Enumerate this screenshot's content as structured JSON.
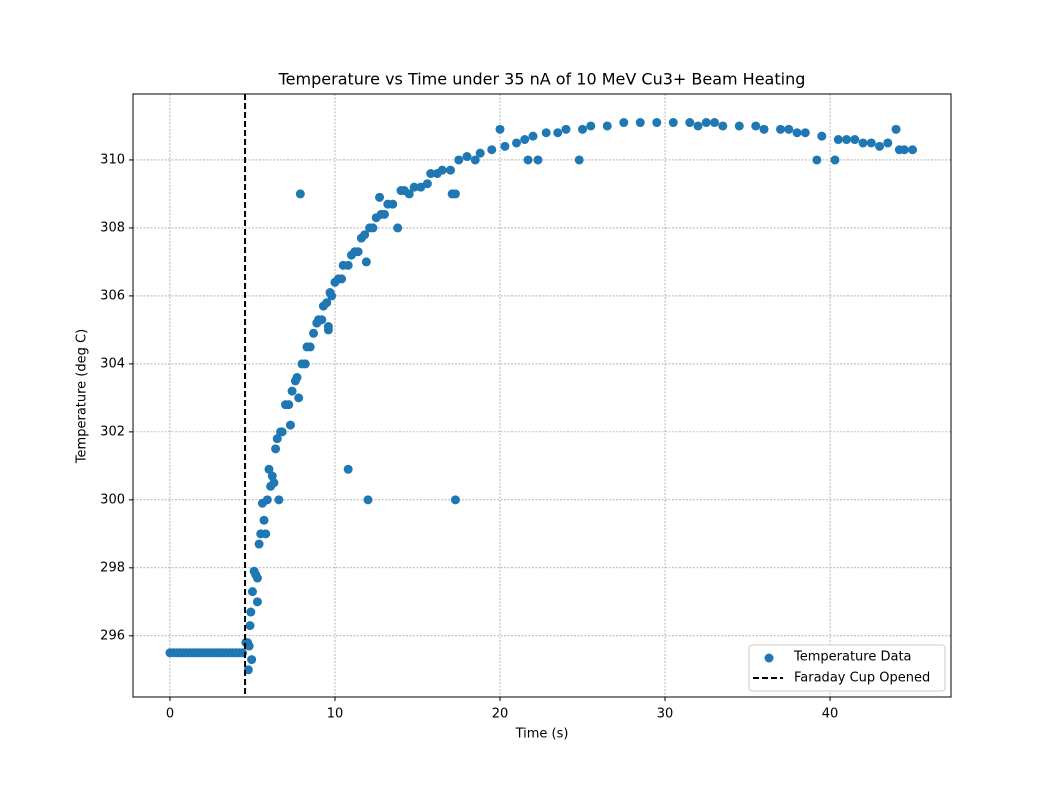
{
  "chart_data": {
    "type": "scatter",
    "title": "Temperature vs Time under 35 nA of 10 MeV Cu3+ Beam Heating",
    "x_label": "Time (s)",
    "y_label": "Temperature (deg C)",
    "xlim": [
      -2.24,
      47.33
    ],
    "ylim": [
      294.2,
      311.94
    ],
    "xticks": [
      0,
      10,
      20,
      30,
      40
    ],
    "yticks": [
      296,
      298,
      300,
      302,
      304,
      306,
      308,
      310
    ],
    "grid": true,
    "legend": "lower right",
    "series": [
      {
        "name": "Temperature Data",
        "color": "#1f77b4",
        "x": [
          0,
          0.2,
          0.4,
          0.6,
          0.8,
          1,
          1.2,
          1.4,
          1.6,
          1.8,
          2,
          2.2,
          2.4,
          2.6,
          2.8,
          3,
          3.2,
          3.4,
          3.6,
          3.8,
          4,
          4.2,
          4.4,
          4.6,
          4.7,
          4.75,
          4.8,
          4.85,
          4.9,
          4.95,
          5,
          5.1,
          5.2,
          5.3,
          5.3,
          5.4,
          5.5,
          5.6,
          5.7,
          5.8,
          5.9,
          6,
          6.1,
          6.2,
          6.3,
          6.4,
          6.5,
          6.6,
          6.7,
          6.8,
          7,
          7.2,
          7.3,
          7.4,
          7.6,
          7.7,
          7.8,
          7.9,
          8,
          8.2,
          8.3,
          8.5,
          8.7,
          8.9,
          9,
          9.2,
          9.3,
          9.5,
          9.6,
          9.6,
          9.7,
          9.8,
          10,
          10.2,
          10.4,
          10.5,
          10.8,
          10.8,
          11,
          11.2,
          11.4,
          11.6,
          11.8,
          11.9,
          12,
          12.1,
          12.3,
          12.5,
          12.7,
          12.8,
          13,
          13.2,
          13.5,
          13.8,
          14,
          14.2,
          14.5,
          14.8,
          15.2,
          15.6,
          15.8,
          16.2,
          16.5,
          17,
          17.1,
          17.3,
          17.3,
          17.5,
          18,
          18.5,
          18.8,
          19.5,
          20,
          20.3,
          21,
          21.5,
          21.7,
          22,
          22.3,
          22.8,
          23.5,
          24,
          24.8,
          25,
          25.5,
          26.5,
          27.5,
          28.5,
          29.5,
          30.5,
          31.5,
          32,
          32.5,
          33,
          33.5,
          34.5,
          35.5,
          36,
          37,
          37.5,
          38,
          38.5,
          39.2,
          39.5,
          40.3,
          40.5,
          41,
          41.5,
          42,
          42.5,
          43,
          43.5,
          44,
          44.2,
          44.5,
          45
        ],
        "values": [
          295.5,
          295.5,
          295.5,
          295.5,
          295.5,
          295.5,
          295.5,
          295.5,
          295.5,
          295.5,
          295.5,
          295.5,
          295.5,
          295.5,
          295.5,
          295.5,
          295.5,
          295.5,
          295.5,
          295.5,
          295.5,
          295.5,
          295.5,
          295.8,
          295.8,
          295,
          295.7,
          296.3,
          296.7,
          295.3,
          297.3,
          297.9,
          297.8,
          297.7,
          297,
          298.7,
          299,
          299.9,
          299.4,
          299,
          300,
          300.9,
          300.4,
          300.7,
          300.5,
          301.5,
          301.8,
          300,
          302,
          302,
          302.8,
          302.8,
          302.2,
          303.2,
          303.5,
          303.6,
          303,
          309,
          304,
          304,
          304.5,
          304.5,
          304.9,
          305.2,
          305.3,
          305.3,
          305.7,
          305.8,
          305.1,
          305,
          306.1,
          306,
          306.4,
          306.5,
          306.5,
          306.9,
          306.9,
          300.9,
          307.2,
          307.3,
          307.3,
          307.7,
          307.8,
          307,
          300,
          308,
          308,
          308.3,
          308.9,
          308.4,
          308.4,
          308.7,
          308.7,
          308,
          309.1,
          309.1,
          309,
          309.2,
          309.2,
          309.3,
          309.6,
          309.6,
          309.7,
          309.7,
          309,
          309,
          300,
          310,
          310.1,
          310,
          310.2,
          310.3,
          310.9,
          310.4,
          310.5,
          310.6,
          310,
          310.7,
          310,
          310.8,
          310.8,
          310.9,
          310,
          310.9,
          311,
          311,
          311.1,
          311.1,
          311.1,
          311.1,
          311.1,
          311,
          311.1,
          311.1,
          311,
          311,
          311,
          310.9,
          310.9,
          310.9,
          310.8,
          310.8,
          310,
          310.7,
          310,
          310.6,
          310.6,
          310.6,
          310.5,
          310.5,
          310.4,
          310.5,
          310.9,
          310.3,
          310.3,
          310.3
        ]
      }
    ],
    "vline": {
      "name": "Faraday Cup Opened",
      "x": 4.55,
      "color": "#000000"
    }
  }
}
